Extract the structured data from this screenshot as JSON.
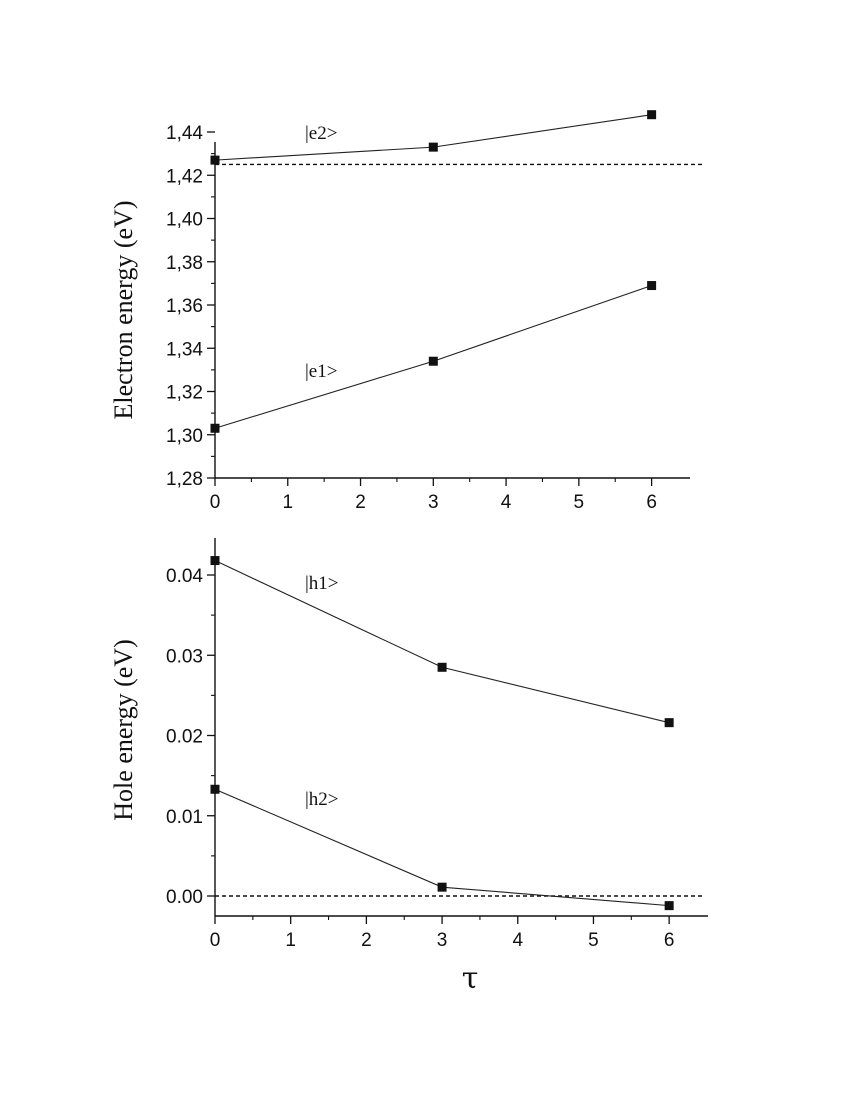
{
  "chart_data": [
    {
      "type": "line",
      "ylabel": "Electron energy  (eV)",
      "xlabel": "",
      "xlim": [
        0,
        6.5
      ],
      "ylim": [
        1.28,
        1.45
      ],
      "x_ticks": [
        0,
        1,
        2,
        3,
        4,
        5,
        6
      ],
      "x_tick_labels": [
        "0",
        "1",
        "2",
        "3",
        "4",
        "5",
        "6"
      ],
      "y_ticks": [
        1.28,
        1.3,
        1.32,
        1.34,
        1.36,
        1.38,
        1.4,
        1.42,
        1.44
      ],
      "y_tick_labels": [
        "1,28",
        "1,30",
        "1,32",
        "1,34",
        "1,36",
        "1,38",
        "1,40",
        "1,42",
        "1,44"
      ],
      "grid": false,
      "series": [
        {
          "name": "|e2>",
          "x": [
            0,
            3,
            6
          ],
          "y": [
            1.427,
            1.433,
            1.448
          ]
        },
        {
          "name": "|e1>",
          "x": [
            0,
            3,
            6
          ],
          "y": [
            1.303,
            1.334,
            1.369
          ]
        }
      ],
      "reference_line": {
        "y": 1.425,
        "style": "dashed"
      }
    },
    {
      "type": "line",
      "ylabel": "Hole energy  (eV)",
      "xlabel": "τ",
      "xlim": [
        0,
        6.5
      ],
      "ylim": [
        -0.0025,
        0.045
      ],
      "x_ticks": [
        0,
        1,
        2,
        3,
        4,
        5,
        6
      ],
      "x_tick_labels": [
        "0",
        "1",
        "2",
        "3",
        "4",
        "5",
        "6"
      ],
      "y_ticks": [
        0.0,
        0.01,
        0.02,
        0.03,
        0.04
      ],
      "y_tick_labels": [
        "0.00",
        "0.01",
        "0.02",
        "0.03",
        "0.04"
      ],
      "grid": false,
      "series": [
        {
          "name": "|h1>",
          "x": [
            0,
            3,
            6
          ],
          "y": [
            0.0418,
            0.0285,
            0.0216
          ]
        },
        {
          "name": "|h2>",
          "x": [
            0,
            3,
            6
          ],
          "y": [
            0.0133,
            0.0011,
            -0.0012
          ]
        }
      ],
      "reference_line": {
        "y": 0.0,
        "style": "dashed"
      }
    }
  ]
}
